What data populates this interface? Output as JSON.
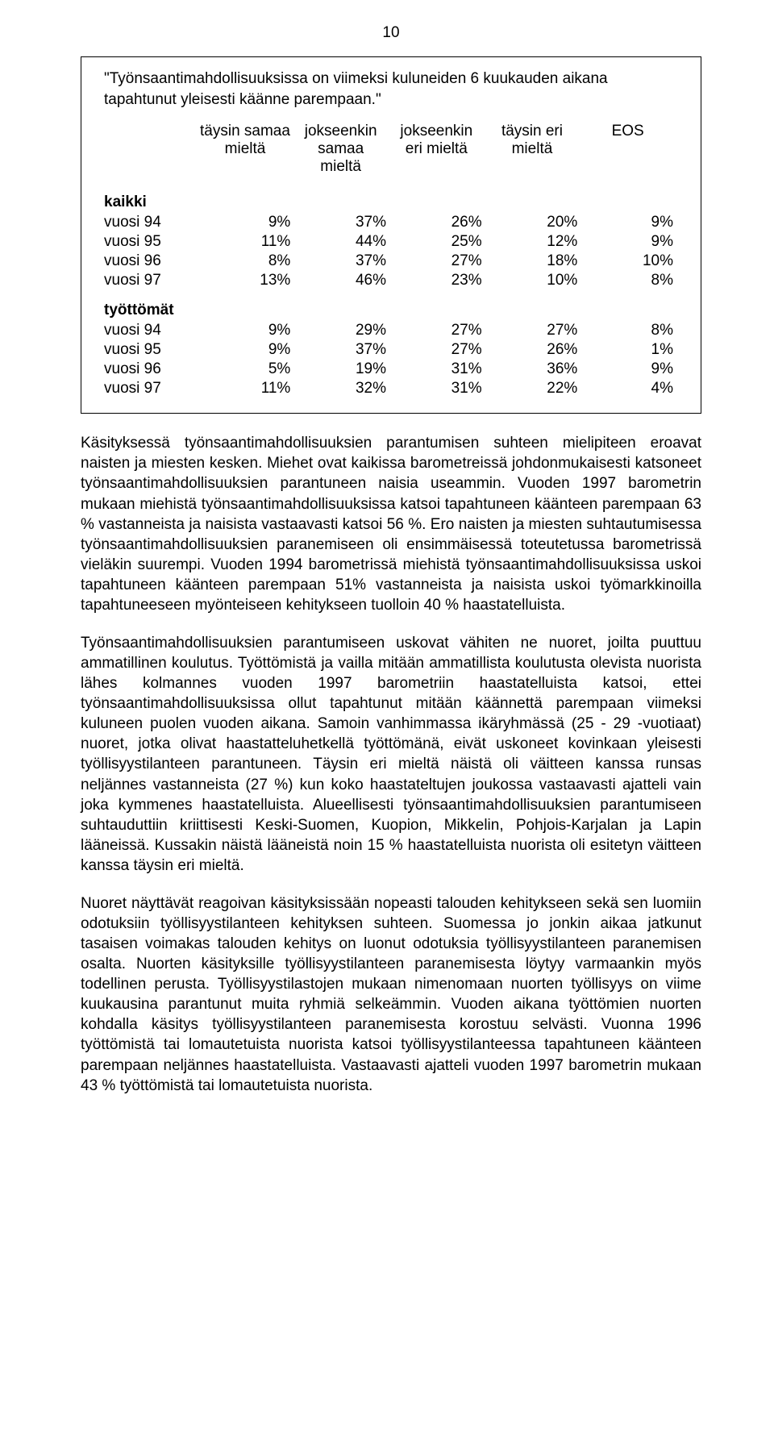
{
  "pageNumber": "10",
  "box": {
    "title": "\"Työnsaantimahdollisuuksissa on viimeksi kuluneiden 6 kuukauden aikana tapahtunut yleisesti käänne parempaan.\"",
    "headers": [
      "täysin samaa mieltä",
      "jokseenkin samaa mieltä",
      "jokseenkin eri mieltä",
      "täysin eri mieltä",
      "EOS"
    ],
    "group1Label": "kaikki",
    "group1Rows": [
      {
        "label": "vuosi 94",
        "cells": [
          "9%",
          "37%",
          "26%",
          "20%",
          "9%"
        ]
      },
      {
        "label": "vuosi 95",
        "cells": [
          "11%",
          "44%",
          "25%",
          "12%",
          "9%"
        ]
      },
      {
        "label": "vuosi 96",
        "cells": [
          "8%",
          "37%",
          "27%",
          "18%",
          "10%"
        ]
      },
      {
        "label": "vuosi 97",
        "cells": [
          "13%",
          "46%",
          "23%",
          "10%",
          "8%"
        ]
      }
    ],
    "group2Label": "työttömät",
    "group2Rows": [
      {
        "label": "vuosi 94",
        "cells": [
          "9%",
          "29%",
          "27%",
          "27%",
          "8%"
        ]
      },
      {
        "label": "vuosi 95",
        "cells": [
          "9%",
          "37%",
          "27%",
          "26%",
          "1%"
        ]
      },
      {
        "label": "vuosi 96",
        "cells": [
          "5%",
          "19%",
          "31%",
          "36%",
          "9%"
        ]
      },
      {
        "label": "vuosi 97",
        "cells": [
          "11%",
          "32%",
          "31%",
          "22%",
          "4%"
        ]
      }
    ]
  },
  "paragraphs": {
    "p1": "Käsityksessä työnsaantimahdollisuuksien parantumisen suhteen mielipiteen eroavat naisten ja miesten kesken. Miehet ovat kaikissa barometreissä johdonmukaisesti katsoneet työnsaantimahdollisuuksien parantuneen naisia useammin. Vuoden 1997 barometrin mukaan miehistä työnsaantimahdollisuuksissa katsoi tapahtuneen käänteen parempaan 63 % vastanneista ja naisista vastaavasti katsoi 56 %.  Ero naisten ja miesten suhtautumisessa työnsaantimahdollisuuksien paranemiseen oli ensimmäisessä toteutetussa barometrissä vieläkin suurempi. Vuoden 1994 barometrissä miehistä työnsaantimahdollisuuksissa uskoi tapahtuneen käänteen parempaan 51% vastanneista ja naisista uskoi työmarkkinoilla tapahtuneeseen myönteiseen kehitykseen tuolloin 40 %  haastatelluista.",
    "p2": "Työnsaantimahdollisuuksien parantumiseen uskovat vähiten ne nuoret, joilta puuttuu ammatillinen koulutus. Työttömistä ja vailla mitään ammatillista koulutusta olevista nuorista lähes kolmannes vuoden 1997 barometriin haastatelluista katsoi, ettei työnsaantimahdollisuuksissa ollut tapahtunut mitään käännettä parempaan viimeksi kuluneen puolen vuoden aikana. Samoin vanhimmassa ikäryhmässä (25 - 29 -vuotiaat) nuoret, jotka olivat haastatteluhetkellä työttömänä, eivät uskoneet kovinkaan yleisesti työllisyystilanteen parantuneen. Täysin eri mieltä näistä oli väitteen kanssa runsas neljännes vastanneista (27 %) kun koko haastateltujen joukossa vastaavasti ajatteli vain joka kymmenes haastatelluista. Alueellisesti työnsaantimahdollisuuksien parantumiseen suhtauduttiin kriittisesti Keski-Suomen, Kuopion, Mikkelin, Pohjois-Karjalan ja Lapin lääneissä. Kussakin näistä lääneistä noin 15 % haastatelluista nuorista oli esitetyn väitteen kanssa täysin eri mieltä.",
    "p3": "Nuoret näyttävät reagoivan käsityksissään nopeasti talouden kehitykseen sekä sen luomiin odotuksiin työllisyystilanteen kehityksen suhteen. Suomessa jo jonkin aikaa jatkunut tasaisen voimakas talouden kehitys on luonut odotuksia työllisyystilanteen paranemisen osalta. Nuorten käsityksille työllisyystilanteen paranemisesta löytyy varmaankin myös todellinen perusta. Työllisyystilastojen mukaan nimenomaan nuorten työllisyys on viime kuukausina parantunut muita ryhmiä selkeämmin. Vuoden aikana työttömien nuorten kohdalla käsitys työllisyystilanteen paranemisesta korostuu selvästi. Vuonna 1996 työttömistä tai lomautetuista nuorista katsoi työllisyystilanteessa tapahtuneen käänteen parempaan neljännes haastatelluista. Vastaavasti ajatteli vuoden 1997 barometrin mukaan 43 % työttömistä tai lomautetuista nuorista."
  },
  "style": {
    "background": "#ffffff",
    "textColor": "#000000",
    "borderColor": "#000000",
    "fontSizePt": 14
  }
}
